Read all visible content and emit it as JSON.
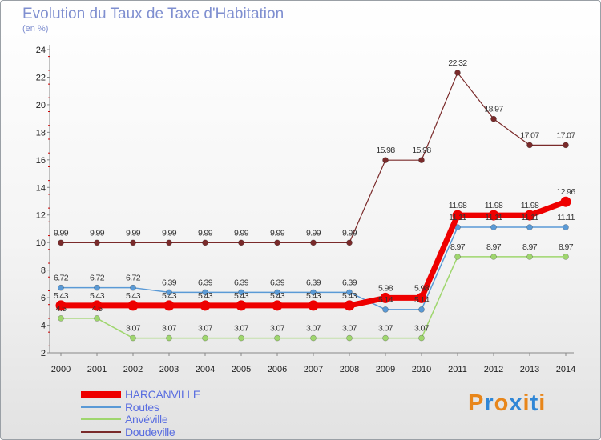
{
  "title": "Evolution du Taux de Taxe d'Habitation",
  "unit": "(en %)",
  "logo": {
    "text": "Proxiti",
    "letters": [
      "P",
      "r",
      "o",
      "x",
      "i",
      "t",
      "i"
    ],
    "colors": [
      "#e8861a",
      "#2f86d6",
      "#e8861a",
      "#2f86d6",
      "#e8861a",
      "#2f86d6",
      "#e8861a"
    ]
  },
  "chart_data": {
    "type": "line",
    "title": "Evolution du Taux de Taxe d'Habitation",
    "ylabel": "(en %)",
    "xlabel": "",
    "x": [
      "2000",
      "2001",
      "2002",
      "2003",
      "2004",
      "2005",
      "2006",
      "2007",
      "2008",
      "2009",
      "2010",
      "2011",
      "2012",
      "2013",
      "2014"
    ],
    "ylim": [
      2,
      24
    ],
    "yticks": [
      "2",
      "4",
      "6",
      "8",
      "10",
      "12",
      "14",
      "16",
      "18",
      "20",
      "22",
      "24"
    ],
    "grid": false,
    "legend_position": "bottom-left",
    "series": [
      {
        "name": "HARCANVILLE",
        "color": "#ee0000",
        "values": [
          5.43,
          5.43,
          5.43,
          5.43,
          5.43,
          5.43,
          5.43,
          5.43,
          5.43,
          5.98,
          5.98,
          11.98,
          11.98,
          11.98,
          12.96
        ],
        "labels": [
          "5.43",
          "5.43",
          "5.43",
          "5.43",
          "5.43",
          "5.43",
          "5.43",
          "5.43",
          "5.43",
          "5.98",
          "5.98",
          "11.98",
          "11.98",
          "11.98",
          "12.96"
        ]
      },
      {
        "name": "Routes",
        "color": "#5a9ad6",
        "values": [
          6.72,
          6.72,
          6.72,
          6.39,
          6.39,
          6.39,
          6.39,
          6.39,
          6.39,
          5.14,
          5.14,
          11.11,
          11.11,
          11.11,
          11.11
        ],
        "labels": [
          "6.72",
          "6.72",
          "6.72",
          "6.39",
          "6.39",
          "6.39",
          "6.39",
          "6.39",
          "6.39",
          "5.14",
          "5.14",
          "11.11",
          "11.11",
          "11.11",
          "11.11"
        ]
      },
      {
        "name": "Anvéville",
        "color": "#9fd66e",
        "values": [
          4.5,
          4.5,
          3.07,
          3.07,
          3.07,
          3.07,
          3.07,
          3.07,
          3.07,
          3.07,
          3.07,
          8.97,
          8.97,
          8.97,
          8.97
        ],
        "labels": [
          "4.5",
          "4.5",
          "3.07",
          "3.07",
          "3.07",
          "3.07",
          "3.07",
          "3.07",
          "3.07",
          "3.07",
          "3.07",
          "8.97",
          "8.97",
          "8.97",
          "8.97"
        ]
      },
      {
        "name": "Doudeville",
        "color": "#7a2a2a",
        "values": [
          9.99,
          9.99,
          9.99,
          9.99,
          9.99,
          9.99,
          9.99,
          9.99,
          9.99,
          15.98,
          15.98,
          22.32,
          18.97,
          17.07,
          17.07
        ],
        "labels": [
          "9.99",
          "9.99",
          "9.99",
          "9.99",
          "9.99",
          "9.99",
          "9.99",
          "9.99",
          "9.99",
          "15.98",
          "15.98",
          "22.32",
          "18.97",
          "17.07",
          "17.07"
        ]
      }
    ]
  }
}
